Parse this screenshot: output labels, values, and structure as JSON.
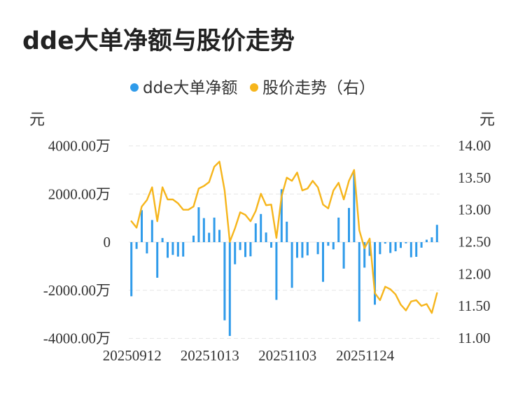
{
  "chart_data": {
    "type": "bar+line",
    "title": "dde大单净额与股价走势",
    "legend": {
      "placement": "top-center",
      "items": [
        {
          "label": "dde大单净额",
          "color": "#2f9bea"
        },
        {
          "label": "股价走势（右）",
          "color": "#f6b51b"
        }
      ]
    },
    "left_axis": {
      "unit": "元",
      "ylim": [
        -4000,
        4000
      ],
      "ticks": [
        {
          "value": 4000,
          "label": "4000.00万"
        },
        {
          "value": 2000,
          "label": "2000.00万"
        },
        {
          "value": 0,
          "label": "0"
        },
        {
          "value": -2000,
          "label": "-2000.00万"
        },
        {
          "value": -4000,
          "label": "-4000.00万"
        }
      ]
    },
    "right_axis": {
      "unit": "元",
      "ylim": [
        11.0,
        14.0
      ],
      "ticks": [
        {
          "value": 14.0,
          "label": "14.00"
        },
        {
          "value": 13.5,
          "label": "13.50"
        },
        {
          "value": 13.0,
          "label": "13.00"
        },
        {
          "value": 12.5,
          "label": "12.50"
        },
        {
          "value": 12.0,
          "label": "12.00"
        },
        {
          "value": 11.5,
          "label": "11.50"
        },
        {
          "value": 11.0,
          "label": "11.00"
        }
      ]
    },
    "x_tick_labels": [
      {
        "index": 0,
        "label": "20250912"
      },
      {
        "index": 15,
        "label": "20251013"
      },
      {
        "index": 30,
        "label": "20251103"
      },
      {
        "index": 45,
        "label": "20251124"
      }
    ],
    "grid": true,
    "series": [
      {
        "name": "dde大单净额",
        "type": "bar",
        "color": "#2f9bea",
        "unit": "万元",
        "values": [
          -2250,
          -280,
          1330,
          -470,
          920,
          -1480,
          170,
          -650,
          -530,
          -600,
          -600,
          0,
          270,
          1450,
          1000,
          390,
          1020,
          510,
          -3250,
          -3900,
          -920,
          -330,
          -620,
          -590,
          780,
          1170,
          400,
          -230,
          -2400,
          2200,
          850,
          -1900,
          -650,
          -650,
          -550,
          0,
          -500,
          -1650,
          -150,
          -300,
          1020,
          -1100,
          1420,
          2900,
          -3300,
          -1060,
          -570,
          -2600,
          -500,
          -60,
          -450,
          -380,
          -240,
          -50,
          -630,
          -610,
          -230,
          100,
          200,
          720
        ]
      },
      {
        "name": "股价走势（右）",
        "type": "line",
        "color": "#f6b51b",
        "values": [
          12.82,
          12.72,
          13.05,
          13.15,
          13.35,
          12.82,
          13.35,
          13.16,
          13.16,
          13.1,
          13.0,
          13.0,
          13.05,
          13.33,
          13.37,
          13.43,
          13.67,
          13.75,
          13.3,
          12.5,
          12.71,
          12.96,
          12.92,
          12.82,
          12.98,
          13.25,
          13.07,
          13.08,
          12.56,
          13.21,
          13.5,
          13.45,
          13.58,
          13.3,
          13.33,
          13.45,
          13.35,
          13.08,
          13.02,
          13.3,
          13.42,
          13.16,
          13.45,
          13.62,
          12.68,
          12.4,
          12.55,
          11.7,
          11.59,
          11.8,
          11.76,
          11.68,
          11.52,
          11.43,
          11.57,
          11.59,
          11.5,
          11.53,
          11.39,
          11.7
        ]
      }
    ]
  }
}
